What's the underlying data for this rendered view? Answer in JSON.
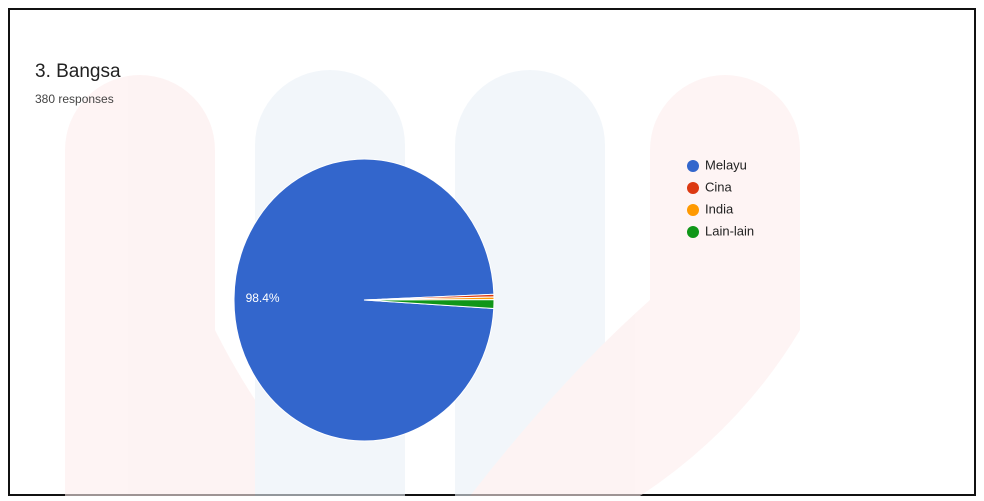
{
  "chart_data": {
    "type": "pie",
    "title": "3. Bangsa",
    "subtitle": "380 responses",
    "categories": [
      "Melayu",
      "Cina",
      "India",
      "Lain-lain"
    ],
    "values": [
      98.4,
      0.3,
      0.3,
      1.0
    ],
    "value_labels": [
      "98.4%",
      null,
      null,
      null
    ],
    "colors": [
      "#3366cc",
      "#dc3912",
      "#ff9900",
      "#109618"
    ],
    "legend": "right"
  }
}
